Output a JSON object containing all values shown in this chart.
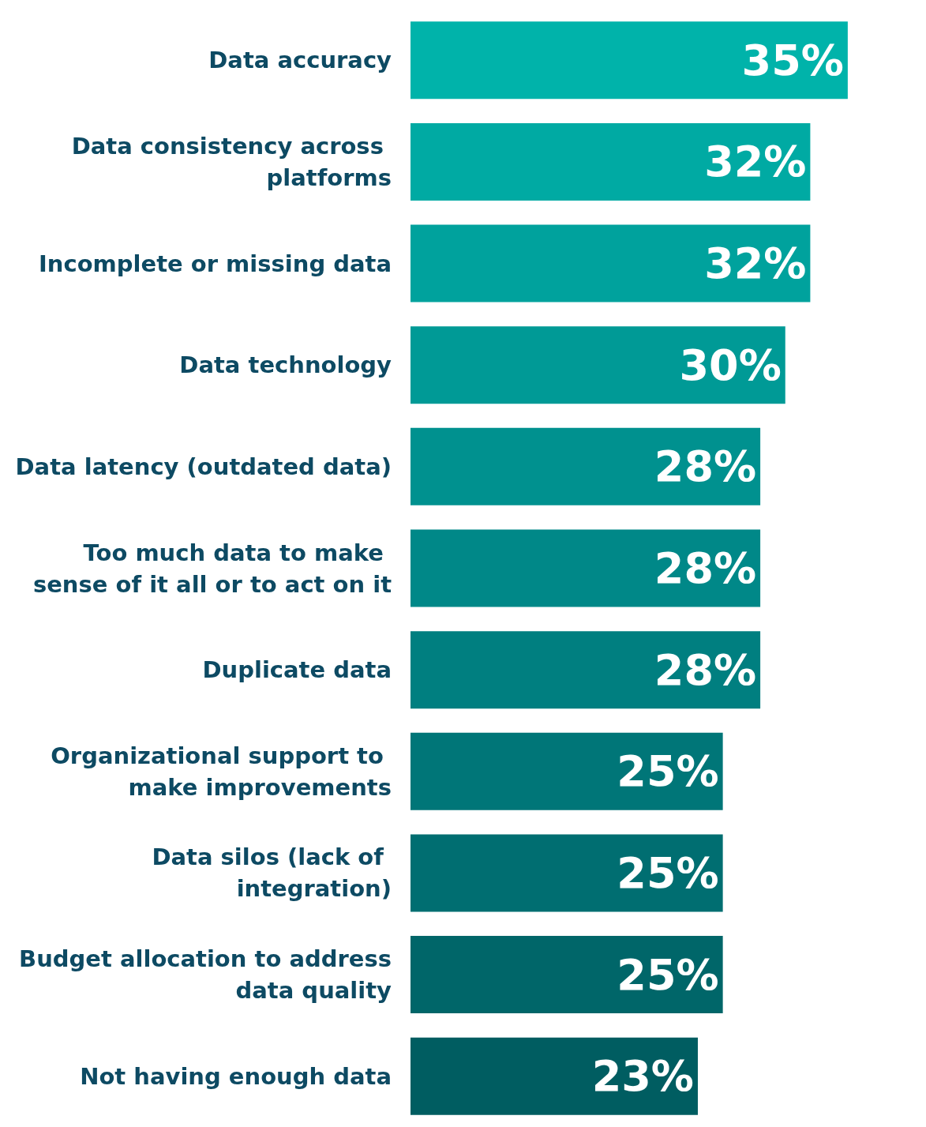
{
  "chart_data": {
    "type": "bar",
    "orientation": "horizontal",
    "tick_labels": "y",
    "categories": [
      "Data accuracy",
      "Data consistency across platforms",
      "Incomplete or missing data",
      "Data technology",
      "Data latency (outdated data)",
      "Too much data to make sense of it all or to act on it",
      "Duplicate data",
      "Organizational support to make improvements",
      "Data silos (lack of integration)",
      "Budget allocation to address data quality",
      "Not having enough data"
    ],
    "values": [
      35,
      32,
      32,
      30,
      28,
      28,
      28,
      25,
      25,
      25,
      23
    ],
    "value_labels": [
      "35%",
      "32%",
      "32%",
      "30%",
      "28%",
      "28%",
      "28%",
      "25%",
      "25%",
      "25%",
      "23%"
    ],
    "colors": [
      "#00b3aa",
      "#00aaa3",
      "#00a29d",
      "#009a96",
      "#00918f",
      "#008888",
      "#007f80",
      "#007678",
      "#006e71",
      "#006669",
      "#005d61"
    ]
  }
}
